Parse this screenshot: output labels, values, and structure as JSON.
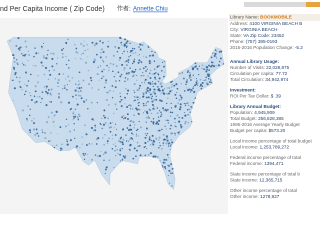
{
  "header": {
    "title": "nd Per Capita Income ( Zip Code)",
    "author_label": "作者:",
    "author": "Annette Chiu"
  },
  "panel": {
    "library": {
      "label": "Library Name:",
      "value": "BOOKMOBILE"
    },
    "details": [
      {
        "label": "Address:",
        "value": "4100 VIRGINIA BEACH B"
      },
      {
        "label": "City:",
        "value": "VIRGINIA BEACH"
      },
      {
        "label": "State:",
        "value": "VA  Zip Code: 23452"
      },
      {
        "label": "Phone:",
        "value": "(757) 385-0193"
      },
      {
        "label": "2015-2016 Population Change:",
        "value": "-5.2"
      }
    ],
    "sections": [
      {
        "heading": "Annual Library Usage:",
        "rows": [
          {
            "label": "Number of Visits:",
            "value": "22,028,875"
          },
          {
            "label": "Circulation per capita:",
            "value": "77.72"
          },
          {
            "label": "Total Circulation:",
            "value": "34,942,974"
          }
        ]
      },
      {
        "heading": "Investment:",
        "rows": [
          {
            "label": "ROI Per Tax Dollar:",
            "value": "$ .39"
          }
        ]
      },
      {
        "heading": "Library Annual Budget:",
        "rows": [
          {
            "label": "Population:",
            "value": "4,945,909"
          },
          {
            "label": "Total Budget:",
            "value": "256,828,385"
          },
          {
            "label": "1995-2016 Average Yearly Budget"
          },
          {
            "label": "Budget per capita:",
            "value": "$573.20"
          }
        ]
      },
      {
        "rows": [
          {
            "label": "Local income percentage of total budget"
          },
          {
            "label": "Local income:",
            "value": "1,253,789,272"
          }
        ]
      },
      {
        "rows": [
          {
            "label": "Federal income percentage of total"
          },
          {
            "label": "Federal income:",
            "value": "1394,471"
          }
        ]
      },
      {
        "rows": [
          {
            "label": "State income percentage of total b"
          },
          {
            "label": "State income:",
            "value": "12,365,715"
          }
        ]
      },
      {
        "rows": [
          {
            "label": "Other income percentage of total"
          },
          {
            "label": "Other income:",
            "value": "1278,927"
          }
        ]
      }
    ]
  }
}
